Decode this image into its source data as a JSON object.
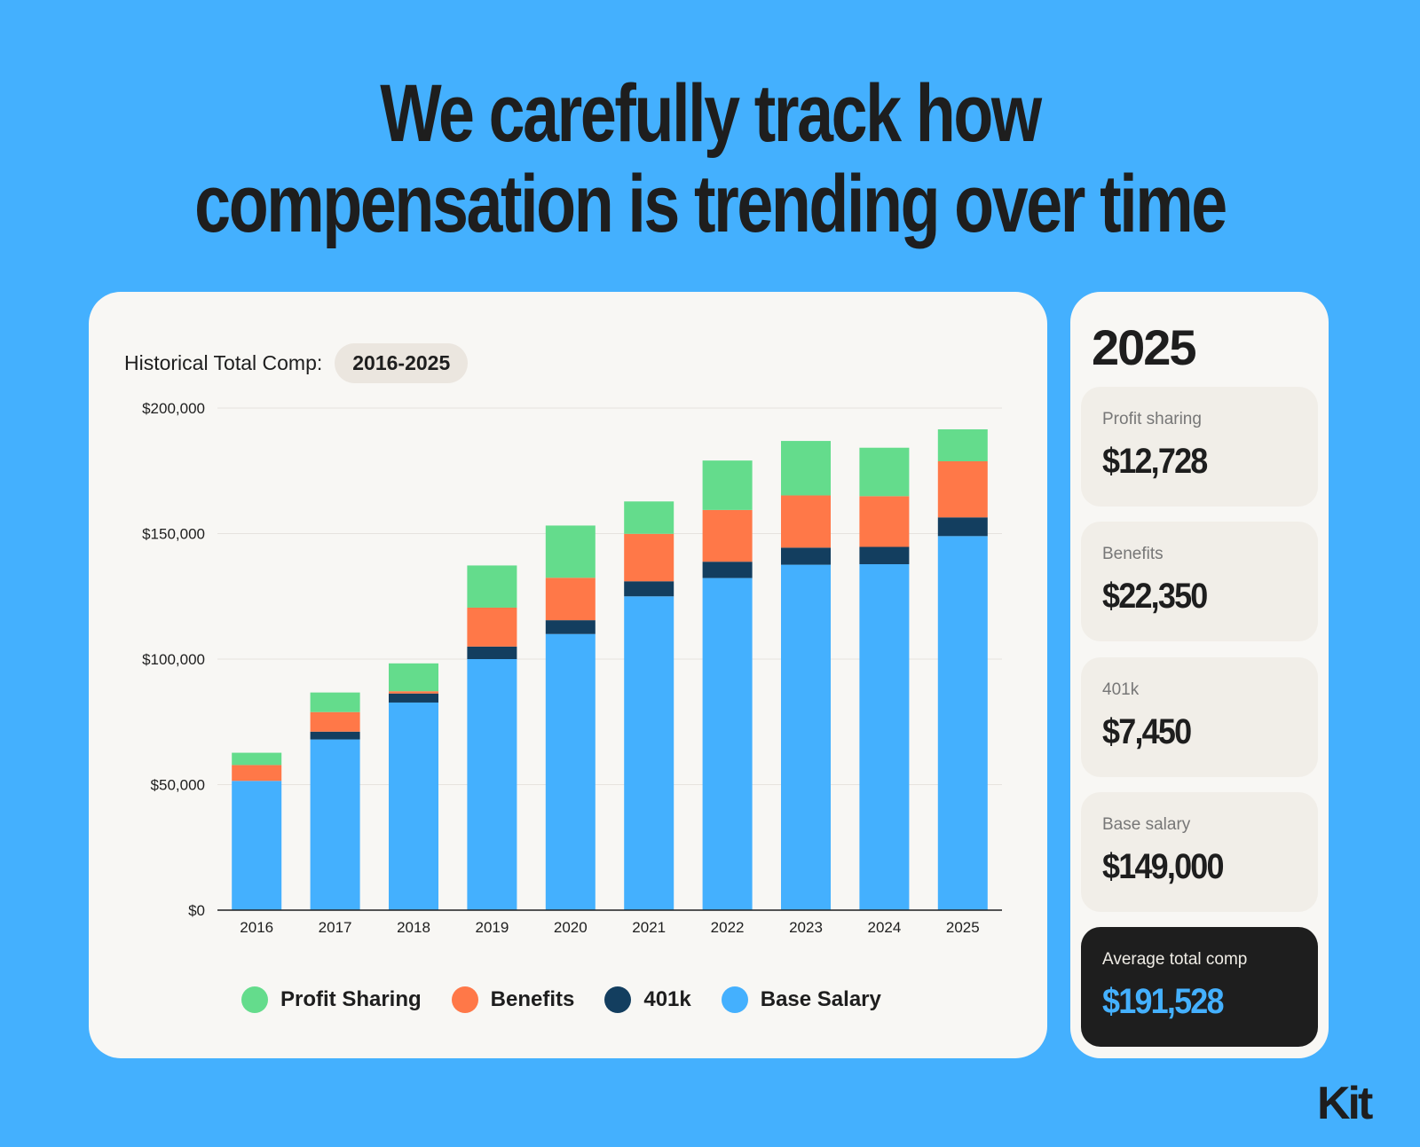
{
  "headline": {
    "line1": "We carefully track how",
    "line2": "compensation is trending over time"
  },
  "chart_header": {
    "label": "Historical Total Comp:",
    "range": "2016-2025"
  },
  "chart_data": {
    "type": "bar",
    "stacked": true,
    "grid": true,
    "legend": "bottom",
    "categories": [
      "2016",
      "2017",
      "2018",
      "2019",
      "2020",
      "2021",
      "2022",
      "2023",
      "2024",
      "2025"
    ],
    "ylim": [
      0,
      200000
    ],
    "yticks": [
      {
        "v": 0,
        "label": "$0"
      },
      {
        "v": 50000,
        "label": "$50,000"
      },
      {
        "v": 100000,
        "label": "$100,000"
      },
      {
        "v": 150000,
        "label": "$150,000"
      },
      {
        "v": 200000,
        "label": "$200,000"
      }
    ],
    "series": [
      {
        "name": "Base Salary",
        "color": "#44b0fe",
        "values": [
          51500,
          68000,
          82700,
          100000,
          110000,
          125000,
          132300,
          137600,
          137800,
          149000
        ]
      },
      {
        "name": "401k",
        "color": "#133e5f",
        "values": [
          0,
          3100,
          3600,
          5000,
          5500,
          6000,
          6500,
          6800,
          6900,
          7450
        ]
      },
      {
        "name": "Benefits",
        "color": "#ff7848",
        "values": [
          6300,
          7800,
          900,
          15500,
          16900,
          18900,
          20600,
          20800,
          20200,
          22350
        ]
      },
      {
        "name": "Profit Sharing",
        "color": "#64dc8c",
        "values": [
          4900,
          7800,
          11100,
          16800,
          20800,
          12900,
          19700,
          21700,
          19300,
          12728
        ]
      }
    ]
  },
  "legend": [
    {
      "label": "Profit Sharing",
      "color": "#64dc8c"
    },
    {
      "label": "Benefits",
      "color": "#ff7848"
    },
    {
      "label": "401k",
      "color": "#133e5f"
    },
    {
      "label": "Base Salary",
      "color": "#44b0fe"
    }
  ],
  "summary": {
    "year": "2025",
    "items": [
      {
        "label": "Profit sharing",
        "value": "$12,728"
      },
      {
        "label": "Benefits",
        "value": "$22,350"
      },
      {
        "label": "401k",
        "value": "$7,450"
      },
      {
        "label": "Base salary",
        "value": "$149,000"
      }
    ],
    "total": {
      "label": "Average total comp",
      "value": "$191,528"
    }
  },
  "logo": "Kit"
}
